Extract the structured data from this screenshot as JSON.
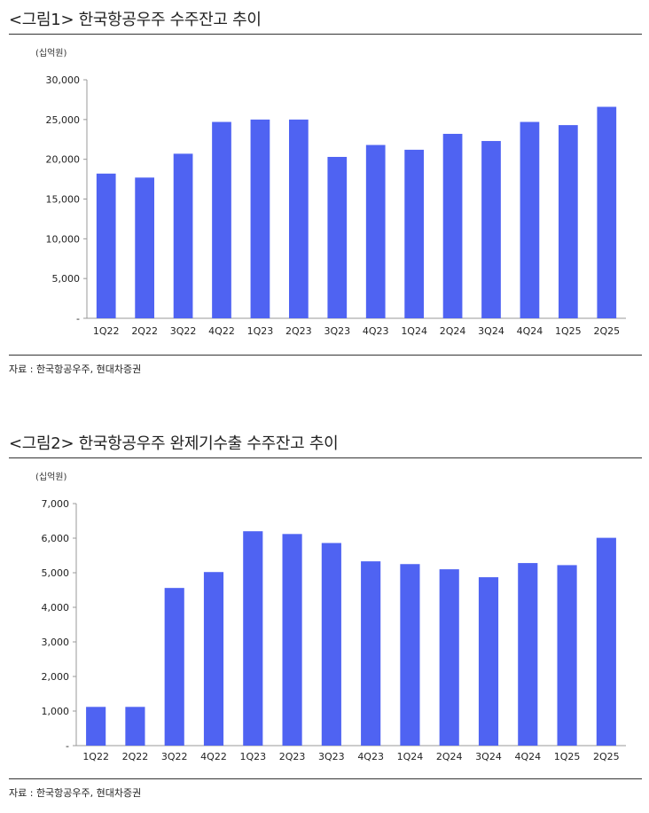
{
  "chart_data": [
    {
      "type": "bar",
      "title": "<그림1> 한국항공우주 수주잔고 추이",
      "unit": "(십억원)",
      "source": "자료 : 한국항공우주, 현대차증권",
      "categories": [
        "1Q22",
        "2Q22",
        "3Q22",
        "4Q22",
        "1Q23",
        "2Q23",
        "3Q23",
        "4Q23",
        "1Q24",
        "2Q24",
        "3Q24",
        "4Q24",
        "1Q25",
        "2Q25"
      ],
      "values": [
        18200,
        17700,
        20700,
        24700,
        25000,
        25000,
        20300,
        21800,
        21200,
        23200,
        22300,
        24700,
        24300,
        26600
      ],
      "ylim": [
        0,
        30000
      ],
      "yticks": [
        0,
        5000,
        10000,
        15000,
        20000,
        25000,
        30000
      ],
      "ytick_labels": [
        "-",
        "5,000",
        "10,000",
        "15,000",
        "20,000",
        "25,000",
        "30,000"
      ],
      "bar_color": "#4f63f2",
      "grid": false
    },
    {
      "type": "bar",
      "title": "<그림2> 한국항공우주 완제기수출 수주잔고 추이",
      "unit": "(십억원)",
      "source": "자료 : 한국항공우주, 현대차증권",
      "categories": [
        "1Q22",
        "2Q22",
        "3Q22",
        "4Q22",
        "1Q23",
        "2Q23",
        "3Q23",
        "4Q23",
        "1Q24",
        "2Q24",
        "3Q24",
        "4Q24",
        "1Q25",
        "2Q25"
      ],
      "values": [
        1120,
        1120,
        4560,
        5020,
        6200,
        6120,
        5860,
        5330,
        5250,
        5100,
        4870,
        5280,
        5220,
        6010
      ],
      "ylim": [
        0,
        7000
      ],
      "yticks": [
        0,
        1000,
        2000,
        3000,
        4000,
        5000,
        6000,
        7000
      ],
      "ytick_labels": [
        "-",
        "1,000",
        "2,000",
        "3,000",
        "4,000",
        "5,000",
        "6,000",
        "7,000"
      ],
      "bar_color": "#4f63f2",
      "grid": false
    }
  ]
}
